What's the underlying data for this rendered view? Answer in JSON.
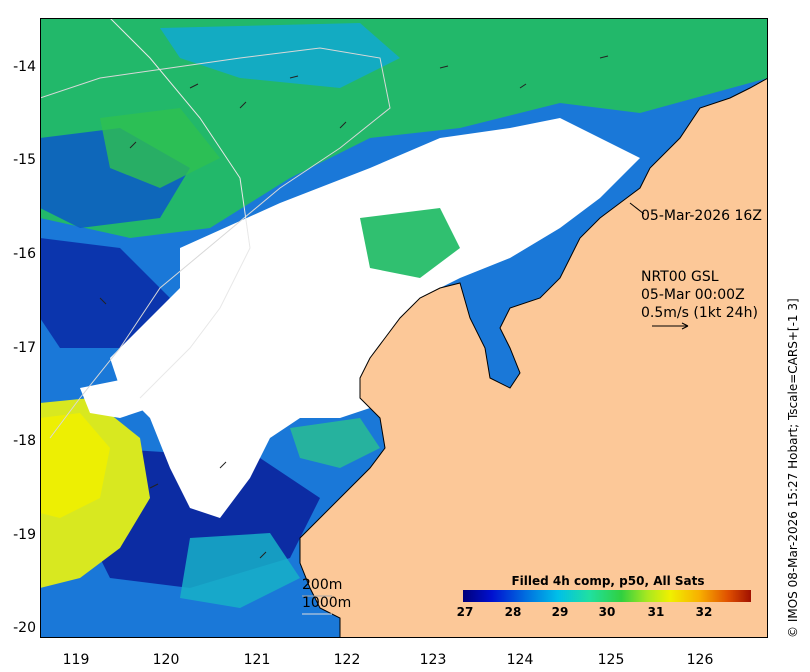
{
  "map": {
    "y_ticks": [
      "-14",
      "-15",
      "-16",
      "-17",
      "-18",
      "-19",
      "-20"
    ],
    "x_ticks": [
      "119",
      "120",
      "121",
      "122",
      "123",
      "124",
      "125",
      "126"
    ],
    "timestamp": "05-Mar-2026 16Z",
    "current_source": "NRT00 GSL",
    "current_time": "05-Mar 00:00Z",
    "current_scale": "0.5m/s (1kt 24h)",
    "contour_200": "200m",
    "contour_1000": "1000m",
    "credit": "© IMOS 08-Mar-2026 15:27 Hobart; Tscale=CARS+[-1 3]",
    "colorbar": {
      "title": "Filled 4h comp, p50, All Sats",
      "ticks": [
        "27",
        "28",
        "29",
        "30",
        "31",
        "32"
      ]
    },
    "colors": {
      "land": "#fcc898",
      "cloud": "#ffffff"
    }
  }
}
